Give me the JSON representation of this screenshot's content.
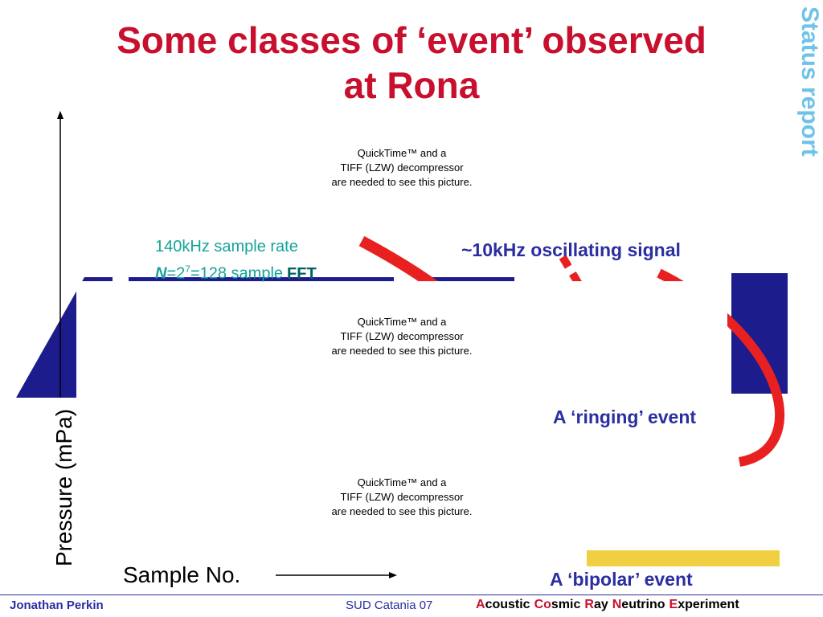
{
  "header": {
    "title_lines": [
      "Some classes of ‘event’ observed",
      "at Rona"
    ],
    "side_label": "Status report"
  },
  "placeholders": [
    {
      "lines": [
        "QuickTime™ and a",
        "TIFF (LZW) decompressor",
        "are needed to see this picture."
      ]
    },
    {
      "lines": [
        "QuickTime™ and a",
        "TIFF (LZW) decompressor",
        "are needed to see this picture."
      ]
    },
    {
      "lines": [
        "QuickTime™ and a",
        "TIFF (LZW) decompressor",
        "are needed to see this picture."
      ]
    }
  ],
  "notes": {
    "sample_rate": "140kHz sample rate",
    "fft": {
      "n": "N",
      "pow_base": "=2",
      "exponent": "7",
      "rest": "=128 sample",
      "fft": "FFT"
    },
    "oscillating": "~10kHz oscillating signal",
    "ringing": "A ‘ringing’ event",
    "bipolar": "A ‘bipolar’ event"
  },
  "axes": {
    "y_label": "Pressure (mPa)",
    "x_label": "Sample No."
  },
  "footer": {
    "author": "Jonathan Perkin",
    "event": "SUD Catania 07",
    "acronym": [
      {
        "initial": "A",
        "rest": "coustic"
      },
      {
        "initial": "Co",
        "rest": "smic"
      },
      {
        "initial": "R",
        "rest": "ay"
      },
      {
        "initial": "N",
        "rest": "eutrino"
      },
      {
        "initial": "E",
        "rest": "xperiment"
      }
    ]
  }
}
